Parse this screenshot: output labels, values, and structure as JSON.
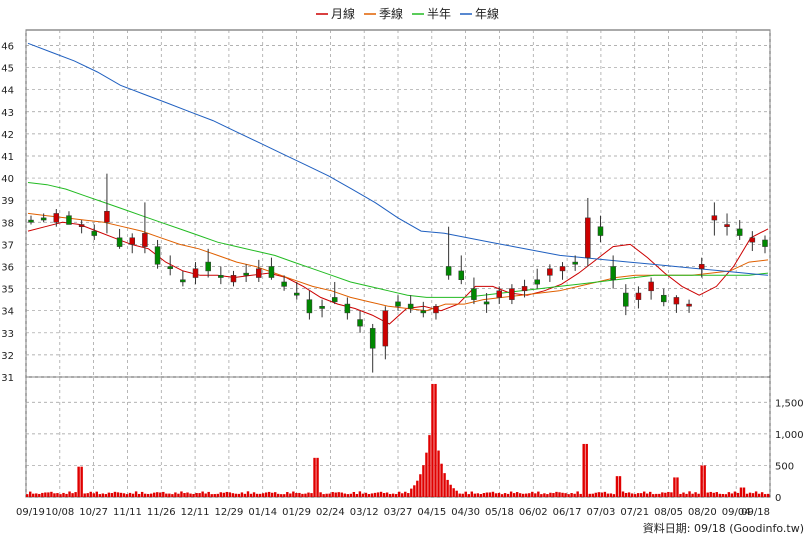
{
  "chart_data": [
    {
      "type": "candlestick",
      "grid": true,
      "ylim": [
        31,
        46.7
      ],
      "y_ticks": [
        31,
        32,
        33,
        34,
        35,
        36,
        37,
        38,
        39,
        40,
        41,
        42,
        43,
        44,
        45,
        46
      ],
      "x_tick_labels": [
        "09/19",
        "10/08",
        "10/27",
        "11/11",
        "11/26",
        "12/11",
        "12/29",
        "01/14",
        "01/29",
        "02/24",
        "03/12",
        "03/27",
        "04/15",
        "04/30",
        "05/18",
        "06/02",
        "06/17",
        "07/03",
        "07/21",
        "08/05",
        "08/20",
        "09/04",
        "09/18"
      ],
      "legend": {
        "placement": "top-center",
        "items": [
          {
            "label": "月線",
            "color": "#cc0000"
          },
          {
            "label": "季線",
            "color": "#e06000"
          },
          {
            "label": "半年",
            "color": "#22bb22"
          },
          {
            "label": "年線",
            "color": "#2060c0"
          }
        ]
      },
      "series": [
        {
          "name": "月線",
          "values": [
            37.6,
            37.8,
            38.0,
            37.9,
            37.6,
            37.3,
            37.0,
            36.8,
            36.2,
            35.8,
            35.6,
            35.6,
            35.5,
            35.6,
            35.7,
            35.5,
            35.1,
            34.6,
            34.3,
            34.1,
            33.8,
            33.4,
            34.1,
            34.2,
            34.0,
            34.3,
            35.1,
            35.1,
            34.8,
            34.7,
            34.9,
            35.2,
            35.7,
            36.3,
            36.9,
            37.0,
            36.4,
            35.7,
            35.1,
            34.7,
            35.1,
            36.0,
            37.3,
            37.7
          ]
        },
        {
          "name": "季線",
          "values": [
            38.4,
            38.3,
            38.2,
            38.1,
            38.0,
            37.8,
            37.6,
            37.3,
            37.0,
            36.8,
            36.5,
            36.2,
            36.0,
            35.7,
            35.4,
            35.1,
            34.9,
            34.6,
            34.4,
            34.2,
            34.1,
            34.0,
            34.3,
            34.3,
            34.5,
            34.6,
            34.7,
            34.8,
            34.9,
            35.1,
            35.3,
            35.5,
            35.6,
            35.6,
            35.6,
            35.6,
            35.7,
            35.8,
            36.2,
            36.3
          ]
        },
        {
          "name": "半年",
          "values": [
            39.8,
            39.7,
            39.5,
            39.2,
            38.9,
            38.6,
            38.3,
            38.0,
            37.7,
            37.4,
            37.1,
            36.9,
            36.7,
            36.5,
            36.2,
            35.9,
            35.6,
            35.3,
            35.1,
            34.9,
            34.7,
            34.6,
            34.6,
            34.6,
            34.7,
            34.8,
            34.9,
            35.0,
            35.1,
            35.2,
            35.3,
            35.4,
            35.5,
            35.6,
            35.6,
            35.6,
            35.6,
            35.6,
            35.6,
            35.7
          ]
        },
        {
          "name": "年線",
          "values": [
            46.1,
            45.7,
            45.3,
            44.8,
            44.2,
            43.8,
            43.4,
            43.0,
            42.6,
            42.1,
            41.6,
            41.1,
            40.6,
            40.1,
            39.5,
            38.9,
            38.2,
            37.6,
            37.5,
            37.3,
            37.1,
            36.9,
            36.7,
            36.5,
            36.4,
            36.3,
            36.2,
            36.1,
            36.0,
            35.9,
            35.8,
            35.7,
            35.6
          ]
        }
      ],
      "candles": [
        [
          38.1,
          38.3,
          37.9,
          38.0
        ],
        [
          38.2,
          38.4,
          38.0,
          38.1
        ],
        [
          38.0,
          38.6,
          37.8,
          38.4
        ],
        [
          38.3,
          38.5,
          37.9,
          37.9
        ],
        [
          37.8,
          38.1,
          37.5,
          37.9
        ],
        [
          37.6,
          37.9,
          37.2,
          37.4
        ],
        [
          38.0,
          40.2,
          37.5,
          38.5
        ],
        [
          37.3,
          37.7,
          36.8,
          36.9
        ],
        [
          37.0,
          37.5,
          36.6,
          37.3
        ],
        [
          36.9,
          38.9,
          36.6,
          37.5
        ],
        [
          36.9,
          37.2,
          35.9,
          36.1
        ],
        [
          36.0,
          36.5,
          35.6,
          35.9
        ],
        [
          35.4,
          35.8,
          35.1,
          35.3
        ],
        [
          35.5,
          36.2,
          35.2,
          35.9
        ],
        [
          36.2,
          36.8,
          35.5,
          35.8
        ],
        [
          35.6,
          36.0,
          35.2,
          35.5
        ],
        [
          35.3,
          35.8,
          35.1,
          35.6
        ],
        [
          35.7,
          36.1,
          35.3,
          35.6
        ],
        [
          35.5,
          36.3,
          35.3,
          35.9
        ],
        [
          36.0,
          36.4,
          35.4,
          35.5
        ],
        [
          35.3,
          35.6,
          34.9,
          35.1
        ],
        [
          34.8,
          35.3,
          34.5,
          34.7
        ],
        [
          34.5,
          34.9,
          33.6,
          33.9
        ],
        [
          34.2,
          34.5,
          33.7,
          34.1
        ],
        [
          34.6,
          35.3,
          34.3,
          34.4
        ],
        [
          34.3,
          34.6,
          33.6,
          33.9
        ],
        [
          33.6,
          34.0,
          33.0,
          33.3
        ],
        [
          33.2,
          33.4,
          31.2,
          32.3
        ],
        [
          32.4,
          34.2,
          31.8,
          34.0
        ],
        [
          34.4,
          34.7,
          34.0,
          34.2
        ],
        [
          34.3,
          34.7,
          33.9,
          34.1
        ],
        [
          34.0,
          34.4,
          33.7,
          33.9
        ],
        [
          33.9,
          34.3,
          33.6,
          34.2
        ],
        [
          36.0,
          37.8,
          35.4,
          35.6
        ],
        [
          35.8,
          36.5,
          35.2,
          35.4
        ],
        [
          35.0,
          35.5,
          34.3,
          34.5
        ],
        [
          34.4,
          34.8,
          33.9,
          34.3
        ],
        [
          34.6,
          35.1,
          34.3,
          34.9
        ],
        [
          34.5,
          35.2,
          34.3,
          35.0
        ],
        [
          34.9,
          35.4,
          34.6,
          35.1
        ],
        [
          35.4,
          35.9,
          35.0,
          35.2
        ],
        [
          35.6,
          36.1,
          35.3,
          35.9
        ],
        [
          35.8,
          36.2,
          35.4,
          36.0
        ],
        [
          36.2,
          36.5,
          35.8,
          36.1
        ],
        [
          36.4,
          39.1,
          36.0,
          38.2
        ],
        [
          37.8,
          38.3,
          37.1,
          37.4
        ],
        [
          36.0,
          36.5,
          35.0,
          35.4
        ],
        [
          34.8,
          35.2,
          33.8,
          34.2
        ],
        [
          34.5,
          35.1,
          34.1,
          34.8
        ],
        [
          34.9,
          35.5,
          34.5,
          35.3
        ],
        [
          34.7,
          35.0,
          34.2,
          34.4
        ],
        [
          34.3,
          34.7,
          33.9,
          34.6
        ],
        [
          34.2,
          34.5,
          33.9,
          34.3
        ],
        [
          35.9,
          36.4,
          35.5,
          36.1
        ],
        [
          38.1,
          38.9,
          37.4,
          38.3
        ],
        [
          37.8,
          38.4,
          37.4,
          37.9
        ],
        [
          37.7,
          38.1,
          37.2,
          37.4
        ],
        [
          37.1,
          37.6,
          36.7,
          37.3
        ],
        [
          37.2,
          37.4,
          36.6,
          36.9
        ]
      ],
      "volume": {
        "ylim": [
          0,
          1900
        ],
        "y_ticks": [
          0,
          500,
          1000,
          1500
        ],
        "y_tick_labels": [
          "0",
          "500",
          "1,000",
          "1,500"
        ],
        "peak_values": [
          480,
          620,
          1400,
          1790,
          390,
          840,
          330,
          310,
          500,
          150
        ],
        "typical_value": 90
      }
    }
  ],
  "source_note": "資料日期: 09/18 (Goodinfo.tw)"
}
